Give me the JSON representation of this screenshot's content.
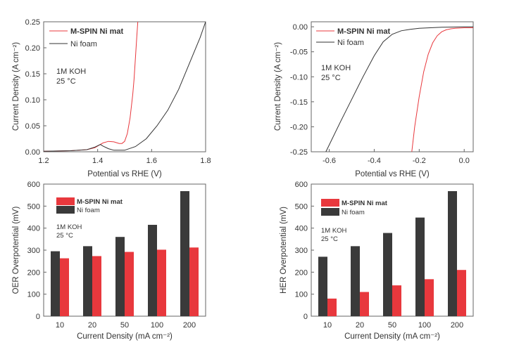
{
  "chart_data": [
    {
      "type": "line",
      "id": "oer",
      "xlabel": "Potential vs RHE (V)",
      "ylabel": "Current Density (A cm⁻²)",
      "xlim": [
        1.2,
        1.8
      ],
      "ylim": [
        0.0,
        0.25
      ],
      "x_ticks": [
        "1.2",
        "1.4",
        "1.6",
        "1.8"
      ],
      "x_tick_values": [
        1.2,
        1.4,
        1.6,
        1.8
      ],
      "y_ticks": [
        "0.00",
        "0.05",
        "0.10",
        "0.15",
        "0.20",
        "0.25"
      ],
      "y_tick_values": [
        0.0,
        0.05,
        0.1,
        0.15,
        0.2,
        0.25
      ],
      "legend": [
        "M-SPIN Ni mat",
        "Ni foam"
      ],
      "annotation": [
        "1M KOH",
        "25 °C"
      ],
      "series": [
        {
          "name": "M-SPIN Ni mat",
          "color": "#e8383d",
          "x": [
            1.2,
            1.3,
            1.36,
            1.39,
            1.41,
            1.42,
            1.44,
            1.46,
            1.48,
            1.49,
            1.5,
            1.51,
            1.52,
            1.53,
            1.535,
            1.54,
            1.545,
            1.55
          ],
          "y": [
            0.001,
            0.002,
            0.004,
            0.008,
            0.014,
            0.017,
            0.02,
            0.019,
            0.016,
            0.016,
            0.02,
            0.035,
            0.065,
            0.11,
            0.14,
            0.18,
            0.22,
            0.26
          ]
        },
        {
          "name": "Ni foam",
          "color": "#333333",
          "x": [
            1.2,
            1.3,
            1.36,
            1.39,
            1.41,
            1.42,
            1.44,
            1.46,
            1.5,
            1.54,
            1.58,
            1.62,
            1.66,
            1.7,
            1.74,
            1.78,
            1.8
          ],
          "y": [
            0.001,
            0.002,
            0.004,
            0.009,
            0.014,
            0.011,
            0.006,
            0.003,
            0.003,
            0.01,
            0.025,
            0.05,
            0.08,
            0.12,
            0.17,
            0.22,
            0.25
          ]
        }
      ]
    },
    {
      "type": "line",
      "id": "her",
      "xlabel": "Potential vs RHE (V)",
      "ylabel": "Current Density (A cm⁻²)",
      "xlim": [
        -0.68,
        0.04
      ],
      "ylim": [
        -0.25,
        0.01
      ],
      "x_ticks": [
        "-0.6",
        "-0.4",
        "-0.2",
        "0.0"
      ],
      "x_tick_values": [
        -0.6,
        -0.4,
        -0.2,
        0.0
      ],
      "y_ticks": [
        "0.00",
        "-0.05",
        "-0.10",
        "-0.15",
        "-0.20",
        "-0.25"
      ],
      "y_tick_values": [
        0.0,
        -0.05,
        -0.1,
        -0.15,
        -0.2,
        -0.25
      ],
      "legend": [
        "M-SPIN Ni mat",
        "Ni foam"
      ],
      "annotation": [
        "1M KOH",
        "25 °C"
      ],
      "series": [
        {
          "name": "M-SPIN Ni mat",
          "color": "#e8383d",
          "x": [
            -0.233,
            -0.22,
            -0.2,
            -0.18,
            -0.16,
            -0.14,
            -0.12,
            -0.1,
            -0.08,
            -0.06,
            -0.04,
            0.0,
            0.04
          ],
          "y": [
            -0.25,
            -0.2,
            -0.14,
            -0.09,
            -0.055,
            -0.032,
            -0.018,
            -0.01,
            -0.006,
            -0.004,
            -0.003,
            -0.002,
            -0.002
          ]
        },
        {
          "name": "Ni foam",
          "color": "#333333",
          "x": [
            -0.615,
            -0.55,
            -0.5,
            -0.45,
            -0.4,
            -0.36,
            -0.32,
            -0.28,
            -0.24,
            -0.2,
            -0.15,
            -0.1,
            -0.05,
            0.0,
            0.04
          ],
          "y": [
            -0.25,
            -0.19,
            -0.145,
            -0.1,
            -0.058,
            -0.03,
            -0.015,
            -0.008,
            -0.005,
            -0.003,
            -0.002,
            -0.001,
            -0.0005,
            0.0,
            0.0
          ]
        }
      ]
    },
    {
      "type": "bar",
      "id": "oer_bar",
      "xlabel": "Current Density (mA cm⁻²)",
      "ylabel": "OER Overpotential (mV)",
      "categories": [
        "10",
        "20",
        "50",
        "100",
        "200"
      ],
      "ylim": [
        0,
        600
      ],
      "y_ticks": [
        "0",
        "100",
        "200",
        "300",
        "400",
        "500",
        "600"
      ],
      "y_tick_values": [
        0,
        100,
        200,
        300,
        400,
        500,
        600
      ],
      "legend": [
        "M-SPIN Ni mat",
        "Ni foam"
      ],
      "annotation": [
        "1M KOH",
        "25 °C"
      ],
      "series": [
        {
          "name": "Ni foam",
          "color": "#3a3a3a",
          "values": [
            295,
            318,
            360,
            415,
            568
          ]
        },
        {
          "name": "M-SPIN Ni mat",
          "color": "#e8383d",
          "values": [
            263,
            273,
            292,
            302,
            312
          ]
        }
      ]
    },
    {
      "type": "bar",
      "id": "her_bar",
      "xlabel": "Current Density (mA cm⁻²)",
      "ylabel": "HER Overpotential (mV)",
      "categories": [
        "10",
        "20",
        "50",
        "100",
        "200"
      ],
      "ylim": [
        0,
        600
      ],
      "y_ticks": [
        "0",
        "100",
        "200",
        "300",
        "400",
        "500",
        "600"
      ],
      "y_tick_values": [
        0,
        100,
        200,
        300,
        400,
        500,
        600
      ],
      "legend": [
        "M-SPIN Ni mat",
        "Ni foam"
      ],
      "annotation": [
        "1M KOH",
        "25 °C"
      ],
      "series": [
        {
          "name": "Ni foam",
          "color": "#3a3a3a",
          "values": [
            270,
            318,
            378,
            448,
            568
          ]
        },
        {
          "name": "M-SPIN Ni mat",
          "color": "#e8383d",
          "values": [
            80,
            110,
            140,
            168,
            210
          ]
        }
      ]
    }
  ]
}
